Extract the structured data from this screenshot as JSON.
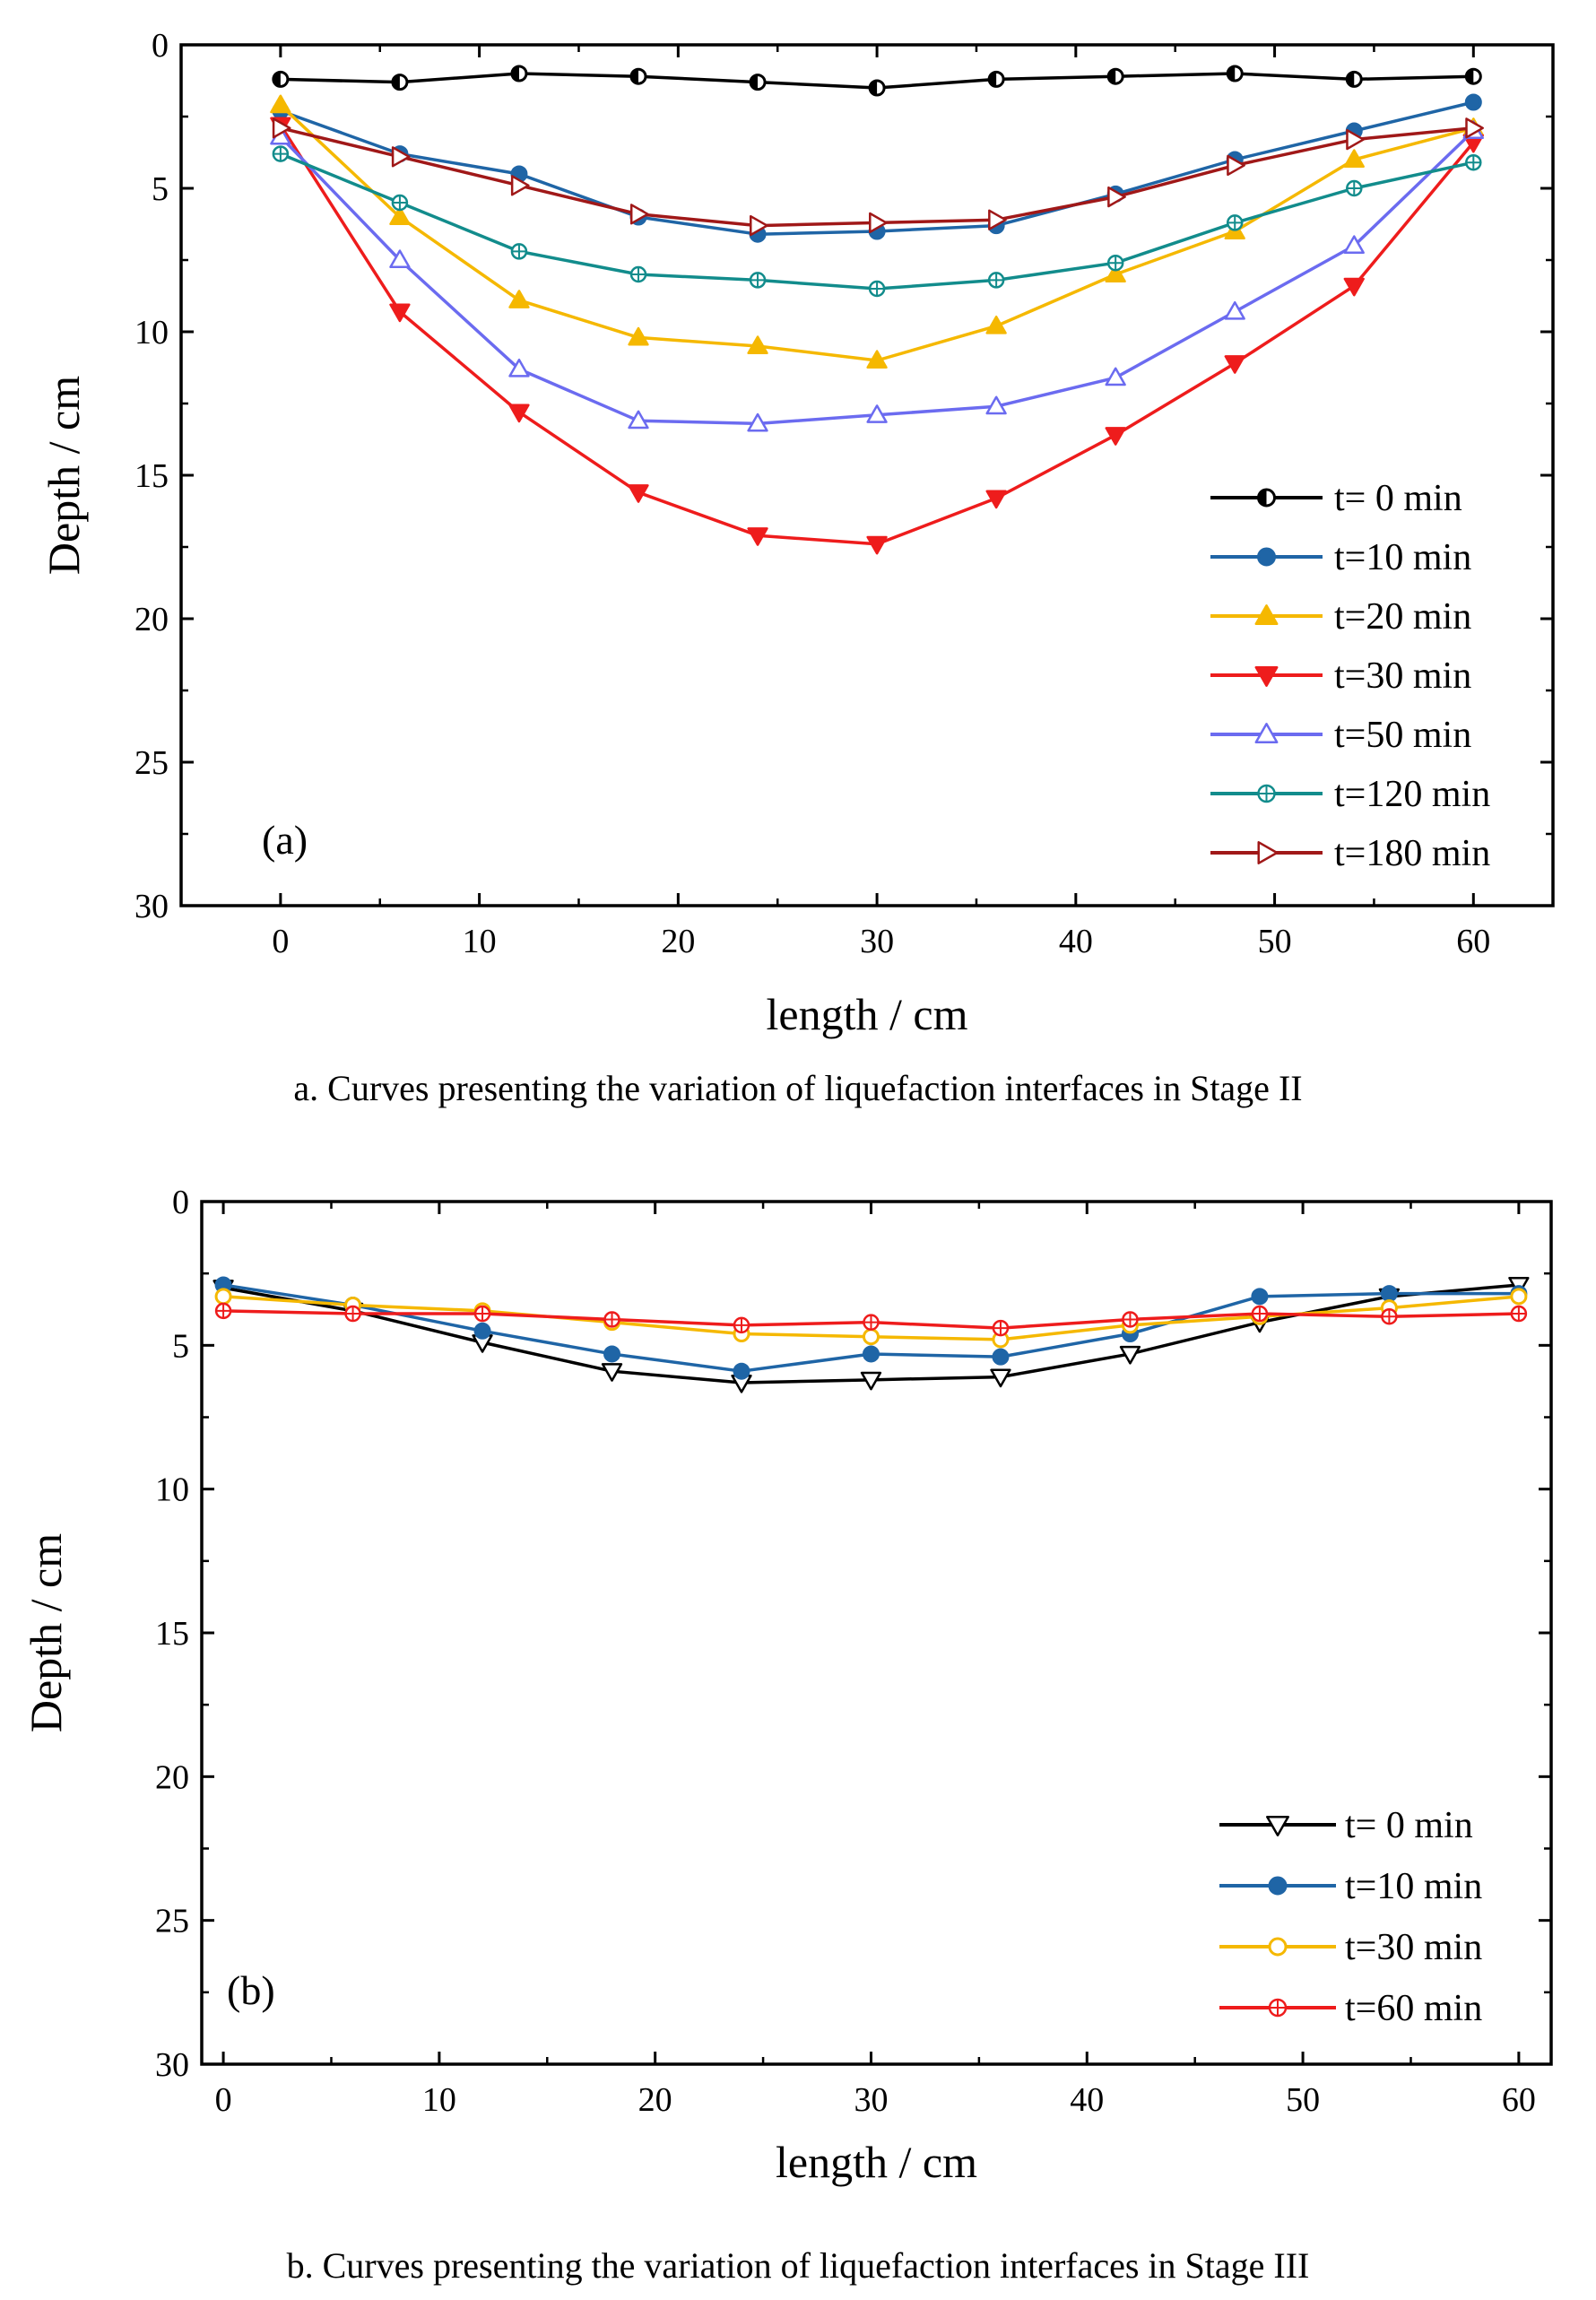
{
  "chart_data": [
    {
      "type": "line",
      "panel_label": "(a)",
      "caption": "a. Curves presenting the variation of liquefaction interfaces in Stage II",
      "xlabel": "length / cm",
      "ylabel": "Depth / cm",
      "xlim": [
        -5,
        64
      ],
      "ylim": [
        0,
        30
      ],
      "y_inverted": true,
      "xticks": [
        0,
        10,
        20,
        30,
        40,
        50,
        60
      ],
      "yticks": [
        0,
        5,
        10,
        15,
        20,
        25,
        30
      ],
      "grid": false,
      "legend_position": "bottom-right",
      "x": [
        0,
        6,
        12,
        18,
        24,
        30,
        36,
        42,
        48,
        54,
        60
      ],
      "series": [
        {
          "name": "t= 0 min",
          "color": "#000000",
          "marker": "circle-half",
          "values": [
            1.2,
            1.3,
            1.0,
            1.1,
            1.3,
            1.5,
            1.2,
            1.1,
            1.0,
            1.2,
            1.1
          ]
        },
        {
          "name": "t=10 min",
          "color": "#1f65a6",
          "marker": "circle-filled",
          "values": [
            2.3,
            3.8,
            4.5,
            6.0,
            6.6,
            6.5,
            6.3,
            5.2,
            4.0,
            3.0,
            2.0
          ]
        },
        {
          "name": "t=20 min",
          "color": "#f5b800",
          "marker": "triangle-up-filled",
          "values": [
            2.1,
            6.0,
            8.9,
            10.2,
            10.5,
            11.0,
            9.8,
            8.0,
            6.5,
            4.0,
            2.9
          ]
        },
        {
          "name": "t=30 min",
          "color": "#ee1c1c",
          "marker": "triangle-down-filled",
          "values": [
            2.8,
            9.3,
            12.8,
            15.6,
            17.1,
            17.4,
            15.8,
            13.6,
            11.1,
            8.4,
            3.4
          ]
        },
        {
          "name": "t=50 min",
          "color": "#6b6bf0",
          "marker": "triangle-up-open",
          "values": [
            3.2,
            7.5,
            11.3,
            13.1,
            13.2,
            12.9,
            12.6,
            11.6,
            9.3,
            7.0,
            3.0
          ]
        },
        {
          "name": "t=120 min",
          "color": "#128c8c",
          "marker": "circle-cross",
          "values": [
            3.8,
            5.5,
            7.2,
            8.0,
            8.2,
            8.5,
            8.2,
            7.6,
            6.2,
            5.0,
            4.1
          ]
        },
        {
          "name": "t=180 min",
          "color": "#a01818",
          "marker": "triangle-right-open",
          "values": [
            2.9,
            3.9,
            4.9,
            5.9,
            6.3,
            6.2,
            6.1,
            5.3,
            4.2,
            3.3,
            2.9
          ]
        }
      ]
    },
    {
      "type": "line",
      "panel_label": "(b)",
      "caption": "b. Curves presenting the variation of liquefaction interfaces in Stage III",
      "xlabel": "length / cm",
      "ylabel": "Depth / cm",
      "xlim": [
        -1,
        61.5
      ],
      "ylim": [
        0,
        30
      ],
      "y_inverted": true,
      "xticks": [
        0,
        10,
        20,
        30,
        40,
        50,
        60
      ],
      "yticks": [
        0,
        5,
        10,
        15,
        20,
        25,
        30
      ],
      "grid": false,
      "legend_position": "bottom-right",
      "x": [
        0,
        6,
        12,
        18,
        24,
        30,
        36,
        42,
        48,
        54,
        60
      ],
      "series": [
        {
          "name": "t= 0 min",
          "color": "#000000",
          "marker": "triangle-down-open",
          "values": [
            3.0,
            3.8,
            4.9,
            5.9,
            6.3,
            6.2,
            6.1,
            5.3,
            4.2,
            3.3,
            2.9
          ]
        },
        {
          "name": "t=10 min",
          "color": "#1f65a6",
          "marker": "circle-filled",
          "values": [
            2.9,
            3.6,
            4.5,
            5.3,
            5.9,
            5.3,
            5.4,
            4.6,
            3.3,
            3.2,
            3.2
          ]
        },
        {
          "name": "t=30 min",
          "color": "#f5b800",
          "marker": "circle-open",
          "values": [
            3.3,
            3.6,
            3.8,
            4.2,
            4.6,
            4.7,
            4.8,
            4.3,
            4.0,
            3.7,
            3.3
          ]
        },
        {
          "name": "t=60 min",
          "color": "#ee1c1c",
          "marker": "circle-cross",
          "values": [
            3.8,
            3.9,
            3.9,
            4.1,
            4.3,
            4.2,
            4.4,
            4.1,
            3.9,
            4.0,
            3.9
          ]
        }
      ]
    }
  ]
}
